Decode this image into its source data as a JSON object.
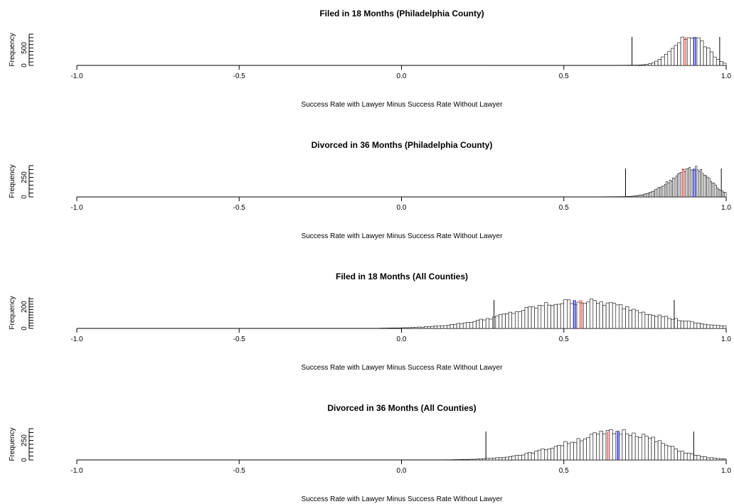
{
  "chart_data": [
    {
      "type": "histogram",
      "title": "Filed in 18 Months (Philadelphia County)",
      "xlabel": "Success Rate with Lawyer Minus Success Rate Without Lawyer",
      "ylabel": "Frequency",
      "xlim": [
        -1.0,
        1.0
      ],
      "x_ticks": [
        "-1.0",
        "-0.5",
        "0.0",
        "0.5",
        "1.0"
      ],
      "y_ticks": [
        "0",
        "500"
      ],
      "ymax": 850,
      "y_axis_max": 900,
      "y_major": [
        0,
        500
      ],
      "bin_width": 0.01,
      "range": [
        0.27,
        1.0
      ],
      "center": 0.895,
      "spread_left": 0.055,
      "spread_right": 0.045,
      "skew_tail": 0.09,
      "vlines_black": [
        0.71,
        0.98
      ],
      "vlines_red": [
        0.87,
        0.875
      ],
      "vlines_blue": [
        0.9,
        0.905
      ]
    },
    {
      "type": "histogram",
      "title": "Divorced in 36 Months (Philadelphia County)",
      "xlabel": "Success Rate with Lawyer Minus Success Rate Without Lawyer",
      "ylabel": "Frequency",
      "xlim": [
        -1.0,
        1.0
      ],
      "x_ticks": [
        "-1.0",
        "-0.5",
        "0.0",
        "0.5",
        "1.0"
      ],
      "y_ticks": [
        "0",
        "250"
      ],
      "ymax": 360,
      "y_axis_max": 400,
      "y_major": [
        0,
        250
      ],
      "bin_width": 0.005,
      "range": [
        0.39,
        1.0
      ],
      "center": 0.9,
      "spread_left": 0.07,
      "spread_right": 0.05,
      "skew_tail": 0.12,
      "vlines_black": [
        0.69,
        0.985
      ],
      "vlines_red": [
        0.865,
        0.87
      ],
      "vlines_blue": [
        0.9,
        0.905
      ]
    },
    {
      "type": "histogram",
      "title": "Filed in 18 Months (All Counties)",
      "xlabel": "Success Rate with Lawyer Minus Success Rate Without Lawyer",
      "ylabel": "Frequency",
      "xlim": [
        -1.0,
        1.0
      ],
      "x_ticks": [
        "-1.0",
        "-0.5",
        "0.0",
        "0.5",
        "1.0"
      ],
      "y_ticks": [
        "0",
        "200"
      ],
      "ymax": 250,
      "y_axis_max": 290,
      "y_major": [
        0,
        200
      ],
      "bin_width": 0.01,
      "range": [
        -0.07,
        1.0
      ],
      "center": 0.55,
      "spread_left": 0.2,
      "spread_right": 0.2,
      "skew_tail": 0.0,
      "vlines_black": [
        0.285,
        0.84
      ],
      "vlines_red": [
        0.55,
        0.555
      ],
      "vlines_blue": [
        0.53,
        0.535
      ]
    },
    {
      "type": "histogram",
      "title": "Divorced in 36 Months (All Counties)",
      "xlabel": "Success Rate with Lawyer Minus Success Rate Without Lawyer",
      "ylabel": "Frequency",
      "xlim": [
        -1.0,
        1.0
      ],
      "x_ticks": [
        "-1.0",
        "-0.5",
        "0.0",
        "0.5",
        "1.0"
      ],
      "y_ticks": [
        "0",
        "250"
      ],
      "ymax": 360,
      "y_axis_max": 400,
      "y_major": [
        0,
        250
      ],
      "bin_width": 0.01,
      "range": [
        -0.34,
        1.0
      ],
      "center": 0.68,
      "spread_left": 0.17,
      "spread_right": 0.12,
      "skew_tail": 0.15,
      "vlines_black": [
        0.26,
        0.9
      ],
      "vlines_red": [
        0.635,
        0.64
      ],
      "vlines_blue": [
        0.665,
        0.67
      ]
    }
  ],
  "colors": {
    "bar_fill": "#ffffff",
    "bar_stroke": "#000000",
    "vline_black": "#000000",
    "vline_red": "#e03030",
    "vline_blue": "#2a2ad0"
  }
}
